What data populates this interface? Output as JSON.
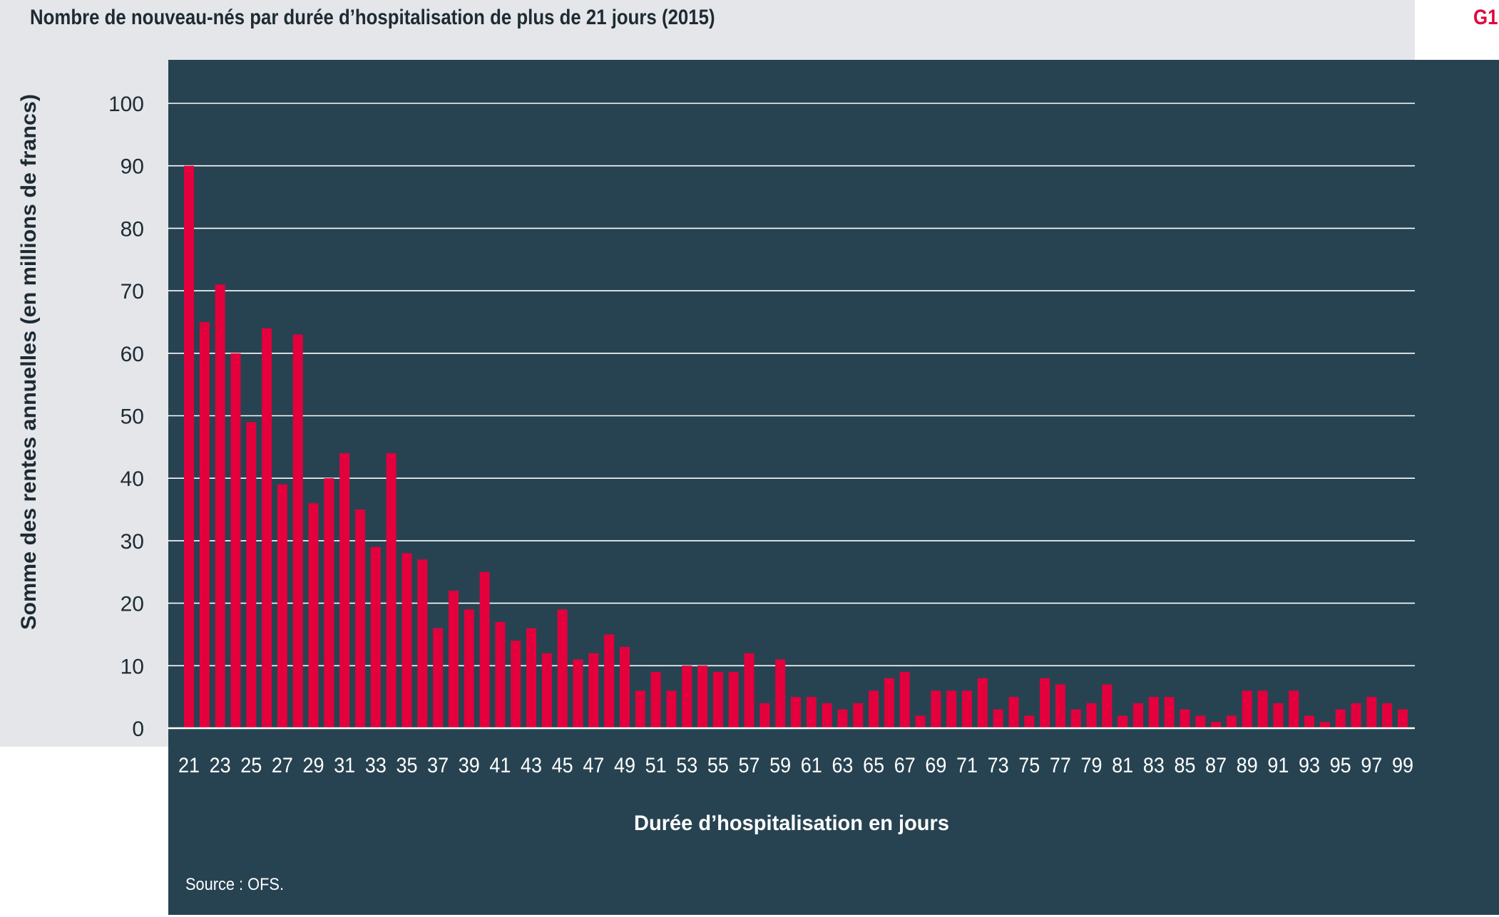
{
  "figure": {
    "title": "Nombre de nouveau-nés par durée d’hospitalisation de plus de 21 jours (2015)",
    "tag": "G1",
    "source": "Source : OFS."
  },
  "colors": {
    "bar": "#e3003d",
    "plot_background": "#274351",
    "header_background": "#e4e6ea",
    "grid": "#ffffff",
    "axis_text": "#ffffff",
    "ylabel_text": "#1e2b33",
    "tag": "#e3003d"
  },
  "chart_data": {
    "type": "bar",
    "title": "Nombre de nouveau-nés par durée d’hospitalisation de plus de 21 jours (2015)",
    "xlabel": "Durée d’hospitalisation en jours",
    "ylabel": "Somme des rentes annuelles (en millions de francs)",
    "ylim": [
      0,
      100
    ],
    "yticks": [
      0,
      10,
      20,
      30,
      40,
      50,
      60,
      70,
      80,
      90,
      100
    ],
    "grid": true,
    "categories": [
      21,
      22,
      23,
      24,
      25,
      26,
      27,
      28,
      29,
      30,
      31,
      32,
      33,
      34,
      35,
      36,
      37,
      38,
      39,
      40,
      41,
      42,
      43,
      44,
      45,
      46,
      47,
      48,
      49,
      50,
      51,
      52,
      53,
      54,
      55,
      56,
      57,
      58,
      59,
      60,
      61,
      62,
      63,
      64,
      65,
      66,
      67,
      68,
      69,
      70,
      71,
      72,
      73,
      74,
      75,
      76,
      77,
      78,
      79,
      80,
      81,
      82,
      83,
      84,
      85,
      86,
      87,
      88,
      89,
      90,
      91,
      92,
      93,
      94,
      95,
      96,
      97,
      98,
      99
    ],
    "tick_labels": [
      "21",
      "23",
      "25",
      "27",
      "29",
      "31",
      "33",
      "35",
      "37",
      "39",
      "41",
      "43",
      "45",
      "47",
      "49",
      "51",
      "53",
      "55",
      "57",
      "59",
      "61",
      "63",
      "65",
      "67",
      "69",
      "71",
      "73",
      "75",
      "77",
      "79",
      "81",
      "83",
      "85",
      "87",
      "89",
      "91",
      "93",
      "95",
      "97",
      "99"
    ],
    "values": [
      90,
      65,
      71,
      60,
      49,
      64,
      39,
      63,
      36,
      40,
      44,
      35,
      29,
      44,
      28,
      27,
      16,
      22,
      19,
      25,
      17,
      14,
      16,
      12,
      19,
      11,
      12,
      15,
      13,
      6,
      9,
      6,
      10,
      10,
      9,
      9,
      12,
      4,
      11,
      5,
      5,
      4,
      3,
      4,
      6,
      8,
      9,
      2,
      6,
      6,
      6,
      8,
      3,
      5,
      2,
      8,
      7,
      3,
      4,
      7,
      2,
      4,
      5,
      5,
      3,
      2,
      1,
      2,
      6,
      6,
      4,
      6,
      2,
      1,
      3,
      4,
      5,
      4,
      3
    ]
  }
}
